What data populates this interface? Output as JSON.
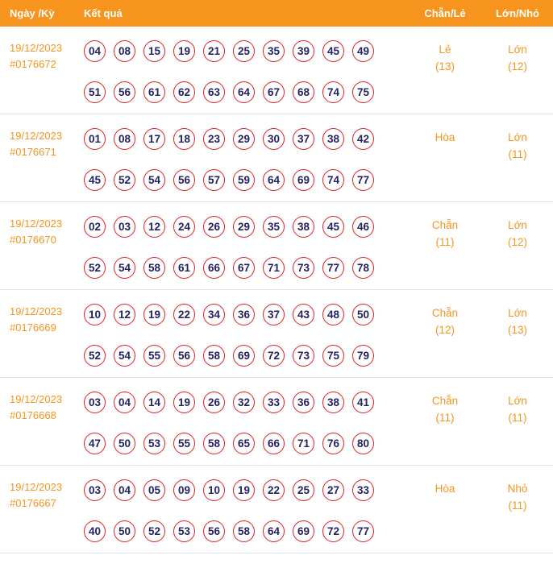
{
  "colors": {
    "accent_orange": "#f7941d",
    "ball_border_red": "#e31e24",
    "ball_number_navy": "#262262",
    "row_divider": "#e4e4e4"
  },
  "header": {
    "col_date": "Ngày /Kỳ",
    "col_result": "Kết quả",
    "col_even_odd": "Chẵn/Lẻ",
    "col_big_small": "Lớn/Nhỏ"
  },
  "rows": [
    {
      "date": "19/12/2023",
      "period": "#0176672",
      "numbers_line1": [
        "04",
        "08",
        "15",
        "19",
        "21",
        "25",
        "35",
        "39",
        "45",
        "49"
      ],
      "numbers_line2": [
        "51",
        "56",
        "61",
        "62",
        "63",
        "64",
        "67",
        "68",
        "74",
        "75"
      ],
      "even_odd": "Lẻ",
      "even_odd_count": "(13)",
      "big_small": "Lớn",
      "big_small_count": "(12)"
    },
    {
      "date": "19/12/2023",
      "period": "#0176671",
      "numbers_line1": [
        "01",
        "08",
        "17",
        "18",
        "23",
        "29",
        "30",
        "37",
        "38",
        "42"
      ],
      "numbers_line2": [
        "45",
        "52",
        "54",
        "56",
        "57",
        "59",
        "64",
        "69",
        "74",
        "77"
      ],
      "even_odd": "Hòa",
      "even_odd_count": "",
      "big_small": "Lớn",
      "big_small_count": "(11)"
    },
    {
      "date": "19/12/2023",
      "period": "#0176670",
      "numbers_line1": [
        "02",
        "03",
        "12",
        "24",
        "26",
        "29",
        "35",
        "38",
        "45",
        "46"
      ],
      "numbers_line2": [
        "52",
        "54",
        "58",
        "61",
        "66",
        "67",
        "71",
        "73",
        "77",
        "78"
      ],
      "even_odd": "Chẵn",
      "even_odd_count": "(11)",
      "big_small": "Lớn",
      "big_small_count": "(12)"
    },
    {
      "date": "19/12/2023",
      "period": "#0176669",
      "numbers_line1": [
        "10",
        "12",
        "19",
        "22",
        "34",
        "36",
        "37",
        "43",
        "48",
        "50"
      ],
      "numbers_line2": [
        "52",
        "54",
        "55",
        "56",
        "58",
        "69",
        "72",
        "73",
        "75",
        "79"
      ],
      "even_odd": "Chẵn",
      "even_odd_count": "(12)",
      "big_small": "Lớn",
      "big_small_count": "(13)"
    },
    {
      "date": "19/12/2023",
      "period": "#0176668",
      "numbers_line1": [
        "03",
        "04",
        "14",
        "19",
        "26",
        "32",
        "33",
        "36",
        "38",
        "41"
      ],
      "numbers_line2": [
        "47",
        "50",
        "53",
        "55",
        "58",
        "65",
        "66",
        "71",
        "76",
        "80"
      ],
      "even_odd": "Chẵn",
      "even_odd_count": "(11)",
      "big_small": "Lớn",
      "big_small_count": "(11)"
    },
    {
      "date": "19/12/2023",
      "period": "#0176667",
      "numbers_line1": [
        "03",
        "04",
        "05",
        "09",
        "10",
        "19",
        "22",
        "25",
        "27",
        "33"
      ],
      "numbers_line2": [
        "40",
        "50",
        "52",
        "53",
        "56",
        "58",
        "64",
        "69",
        "72",
        "77"
      ],
      "even_odd": "Hòa",
      "even_odd_count": "",
      "big_small": "Nhỏ",
      "big_small_count": "(11)"
    }
  ]
}
